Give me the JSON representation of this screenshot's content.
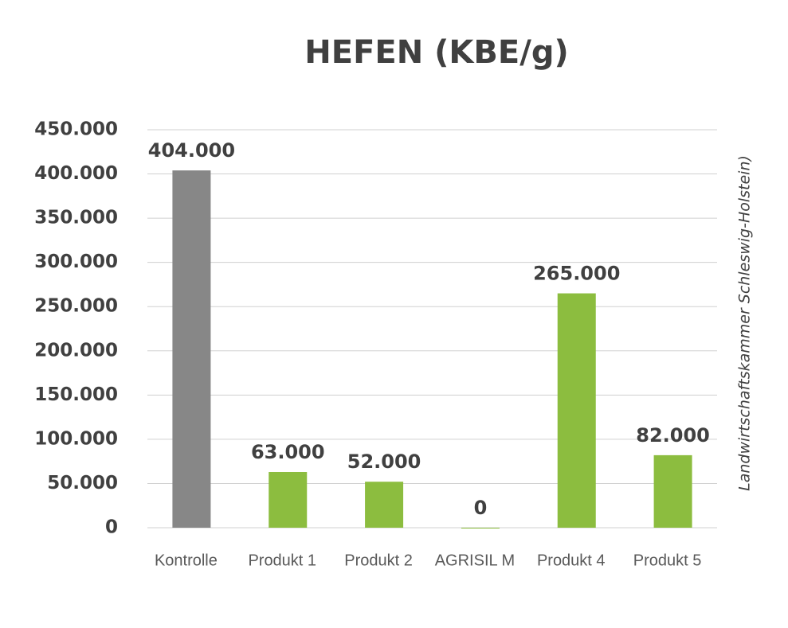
{
  "chart_data": {
    "type": "bar",
    "title": "HEFEN (KBE/g)",
    "source": "Landwirtschaftskammer Schleswig-Holstein)",
    "categories": [
      "Kontrolle",
      "Produkt 1",
      "Produkt 2",
      "AGRISIL M",
      "Produkt 4",
      "Produkt 5"
    ],
    "values": [
      404000,
      63000,
      52000,
      0,
      265000,
      82000
    ],
    "value_labels": [
      "404.000",
      "63.000",
      "52.000",
      "0",
      "265.000",
      "82.000"
    ],
    "colors": [
      "#878787",
      "#8cbd3f",
      "#8cbd3f",
      "#8cbd3f",
      "#8cbd3f",
      "#8cbd3f"
    ],
    "ylim": [
      0,
      450000
    ],
    "yticks": [
      0,
      {
        "value": 50000,
        "label": "50.000"
      },
      {
        "value": 100000,
        "label": "100.000"
      },
      {
        "value": 150000,
        "label": "150.000"
      },
      {
        "value": 200000,
        "label": "200.000"
      },
      {
        "value": 250000,
        "label": "250.000"
      },
      {
        "value": 300000,
        "label": "300.000"
      },
      {
        "value": 350000,
        "label": "350.000"
      },
      {
        "value": 400000,
        "label": "400.000"
      },
      {
        "value": 450000,
        "label": "450.000"
      }
    ],
    "grid": true
  }
}
